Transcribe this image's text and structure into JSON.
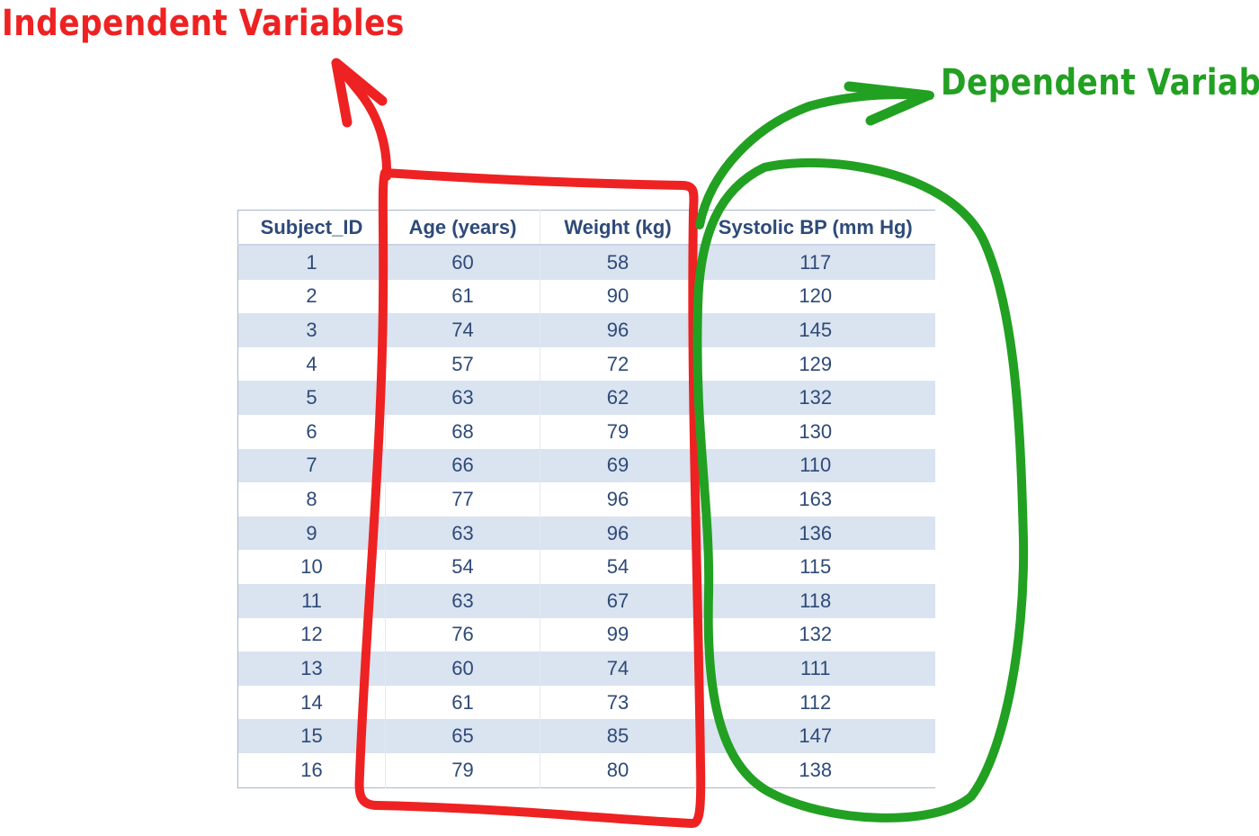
{
  "annotations": {
    "independent": {
      "label": "Independent Variables",
      "color": "#ee2222"
    },
    "dependent": {
      "label": "Dependent Variable",
      "color": "#22a022"
    }
  },
  "table": {
    "headers": [
      "Subject_ID",
      "Age (years)",
      "Weight (kg)",
      "Systolic BP (mm Hg)"
    ],
    "rows": [
      [
        "1",
        "60",
        "58",
        "117"
      ],
      [
        "2",
        "61",
        "90",
        "120"
      ],
      [
        "3",
        "74",
        "96",
        "145"
      ],
      [
        "4",
        "57",
        "72",
        "129"
      ],
      [
        "5",
        "63",
        "62",
        "132"
      ],
      [
        "6",
        "68",
        "79",
        "130"
      ],
      [
        "7",
        "66",
        "69",
        "110"
      ],
      [
        "8",
        "77",
        "96",
        "163"
      ],
      [
        "9",
        "63",
        "96",
        "136"
      ],
      [
        "10",
        "54",
        "54",
        "115"
      ],
      [
        "11",
        "63",
        "67",
        "118"
      ],
      [
        "12",
        "76",
        "99",
        "132"
      ],
      [
        "13",
        "60",
        "74",
        "111"
      ],
      [
        "14",
        "61",
        "73",
        "112"
      ],
      [
        "15",
        "65",
        "85",
        "147"
      ],
      [
        "16",
        "79",
        "80",
        "138"
      ]
    ]
  }
}
